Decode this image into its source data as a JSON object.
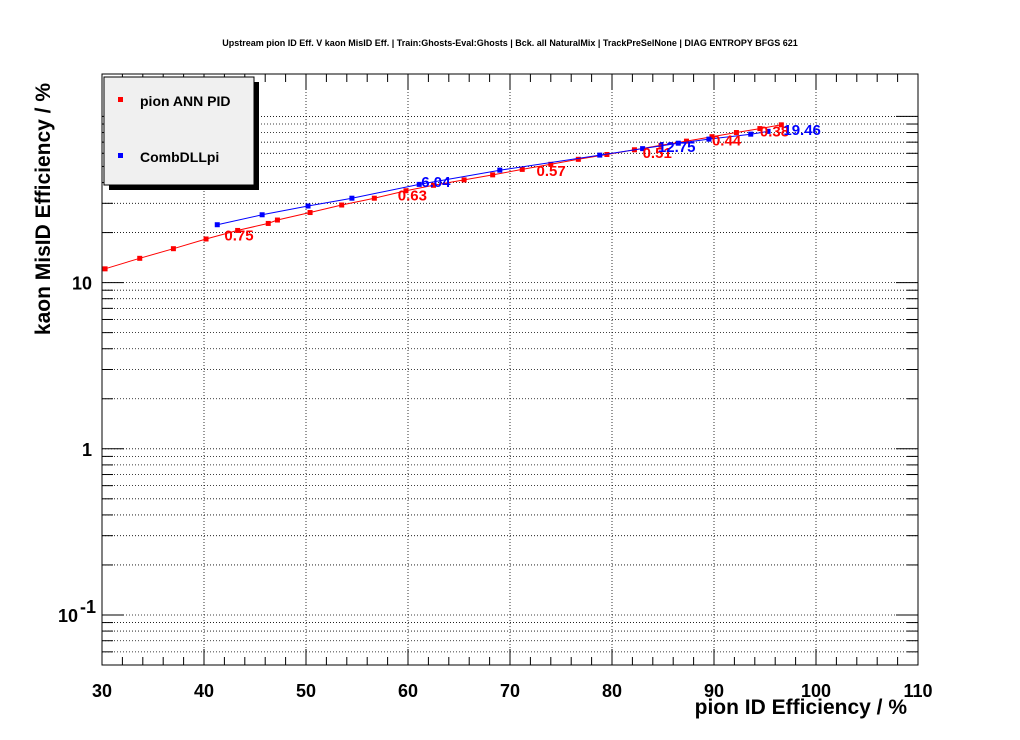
{
  "chart_data": {
    "type": "scatter",
    "title": "Upstream pion ID Eff. V kaon MisID Eff. | Train:Ghosts-Eval:Ghosts | Bck. all NaturalMix | TrackPreSelNone | DIAG ENTROPY BFGS 621",
    "xlabel": "pion ID Efficiency / %",
    "ylabel": "kaon MisID Efficiency / %",
    "xlim": [
      30,
      110
    ],
    "ylim": [
      0.05,
      180
    ],
    "y_scale": "log",
    "grid": true,
    "legend_position": "top-left",
    "x_ticks": [
      "30",
      "40",
      "50",
      "60",
      "70",
      "80",
      "90",
      "100",
      "110"
    ],
    "y_ticks": [
      {
        "value": 10,
        "label": "10"
      },
      {
        "value": 1,
        "label": "1"
      },
      {
        "value": 0.1,
        "label": "10",
        "exponent": "-1"
      }
    ],
    "series": [
      {
        "name": "pion ANN PID",
        "color": "#ff0000",
        "x": [
          30.3,
          33.7,
          37.0,
          40.2,
          43.3,
          46.3,
          47.2,
          50.4,
          53.5,
          56.7,
          59.8,
          62.5,
          65.5,
          68.3,
          71.2,
          74.0,
          76.7,
          79.5,
          82.2,
          84.8,
          87.3,
          89.8,
          92.2,
          94.5,
          96.6
        ],
        "y": [
          12.1,
          14.0,
          16.0,
          18.3,
          20.6,
          22.7,
          23.8,
          26.4,
          29.3,
          32.2,
          35.7,
          38.5,
          41.5,
          44.5,
          48.0,
          51.5,
          55.2,
          59.0,
          63.0,
          67.0,
          71.0,
          75.5,
          80.0,
          84.5,
          89.0
        ]
      },
      {
        "name": "CombDLLpi",
        "color": "#0000ff",
        "x": [
          41.3,
          45.7,
          50.2,
          54.5,
          61.1,
          69.0,
          78.8,
          83.0,
          86.5,
          89.5,
          93.6,
          95.3
        ],
        "y": [
          22.3,
          25.6,
          28.9,
          32.2,
          39.0,
          47.5,
          58.5,
          64.0,
          69.0,
          73.0,
          78.2,
          81.3
        ]
      }
    ],
    "annotations": [
      {
        "text": "0.75",
        "series": "pion ANN PID",
        "x": 42.0,
        "y": 19.5
      },
      {
        "text": "0.63",
        "series": "pion ANN PID",
        "x": 59.0,
        "y": 34.0
      },
      {
        "text": "0.57",
        "series": "pion ANN PID",
        "x": 72.6,
        "y": 47.5
      },
      {
        "text": "0.51",
        "series": "pion ANN PID",
        "x": 83.0,
        "y": 61.0
      },
      {
        "text": "0.44",
        "series": "pion ANN PID",
        "x": 89.8,
        "y": 72.5
      },
      {
        "text": "0.38",
        "series": "pion ANN PID",
        "x": 94.5,
        "y": 82.0
      },
      {
        "text": "6.04",
        "series": "CombDLLpi",
        "x": 61.3,
        "y": 41.0
      },
      {
        "text": "12.75",
        "series": "CombDLLpi",
        "x": 84.5,
        "y": 66.5
      },
      {
        "text": "19.46",
        "series": "CombDLLpi",
        "x": 96.8,
        "y": 84.0
      }
    ]
  }
}
